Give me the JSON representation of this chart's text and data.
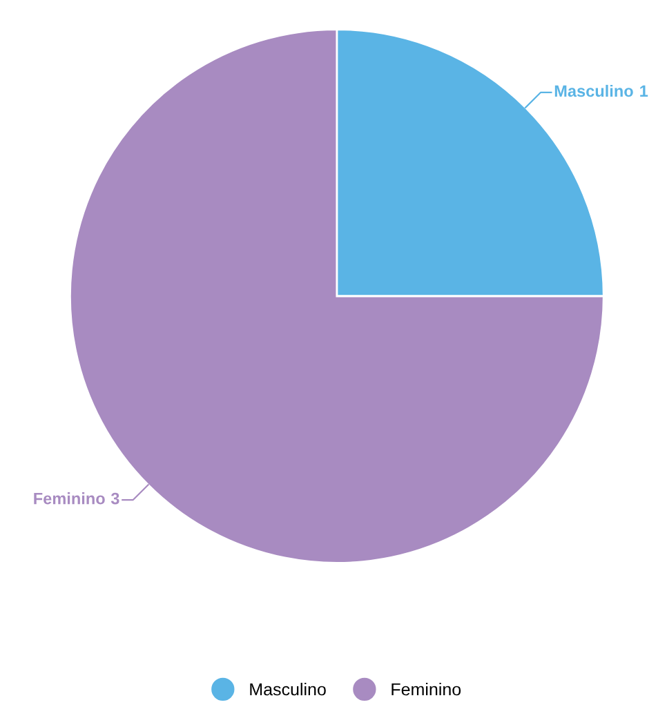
{
  "chart_data": {
    "type": "pie",
    "categories": [
      "Masculino",
      "Feminino"
    ],
    "values": [
      1,
      3
    ],
    "colors": [
      "#5ab4e5",
      "#a88bc1"
    ],
    "data_labels": true,
    "legend": "bottom"
  }
}
